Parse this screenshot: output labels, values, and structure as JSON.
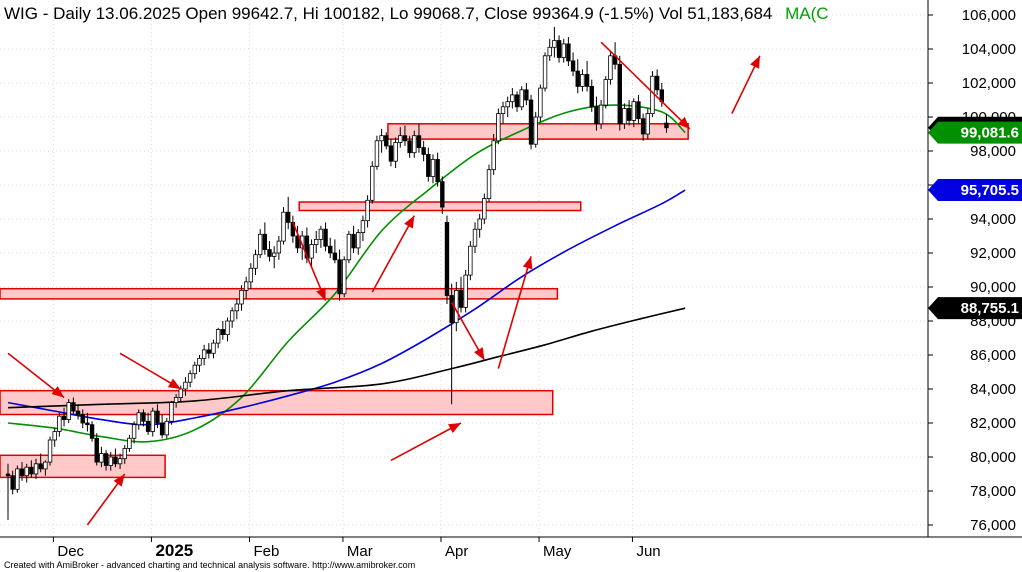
{
  "header": {
    "text": "WIG - Daily 13.06.2025 Open 99642.7, Hi 100182, Lo 99068.7, Close 99364.9 (-1.5%) Vol 51,183,684",
    "ma_text": "MA(C"
  },
  "footer": {
    "text": "Created with AmiBroker - advanced charting and technical analysis software. http://www.amibroker.com"
  },
  "colors": {
    "up_candle": "#ffffff",
    "down_candle": "#000000",
    "candle_outline": "#000000",
    "ma_short": "#009000",
    "ma_mid": "#0000e0",
    "ma_long": "#000000",
    "zone_fill": "#ffc0c0",
    "zone_stroke": "#e00000",
    "arrow": "#e00000",
    "badge_close": "#000000",
    "badge_short": "#009000",
    "badge_mid": "#0000e0",
    "badge_long": "#000000"
  },
  "chart_data": {
    "type": "candlestick",
    "title": "WIG - Daily",
    "y_axis": {
      "ticks": [
        76000,
        78000,
        80000,
        82000,
        84000,
        86000,
        88000,
        90000,
        92000,
        94000,
        96000,
        98000,
        100000,
        102000,
        104000,
        106000
      ],
      "tick_labels": [
        "76,000",
        "78,000",
        "80,000",
        "82,000",
        "84,000",
        "86,000",
        "88,000",
        "90,000",
        "92,000",
        "94,000",
        "96,000",
        "98,000",
        "100,000",
        "102,000",
        "104,000",
        "106,000"
      ],
      "ylim": [
        75000,
        106800
      ]
    },
    "x_axis": {
      "month_labels": [
        {
          "label": "Dec",
          "bar": 11,
          "bold": false
        },
        {
          "label": "2025",
          "bar": 32,
          "bold": true
        },
        {
          "label": "Feb",
          "bar": 53,
          "bold": false
        },
        {
          "label": "Mar",
          "bar": 73,
          "bold": false
        },
        {
          "label": "Apr",
          "bar": 94,
          "bold": false
        },
        {
          "label": "May",
          "bar": 115,
          "bold": false
        },
        {
          "label": "Jun",
          "bar": 135,
          "bold": false
        }
      ]
    },
    "bar_count": 146,
    "candles_ohlc": [
      [
        79000,
        79600,
        76300,
        78900
      ],
      [
        78900,
        79200,
        77800,
        78100
      ],
      [
        78100,
        79500,
        77900,
        79300
      ],
      [
        79300,
        79700,
        78600,
        78900
      ],
      [
        78900,
        79600,
        78500,
        79400
      ],
      [
        79400,
        79800,
        78800,
        79000
      ],
      [
        79000,
        79900,
        78700,
        79600
      ],
      [
        79600,
        80200,
        79100,
        79300
      ],
      [
        79300,
        79800,
        78900,
        79700
      ],
      [
        79700,
        81200,
        79500,
        81000
      ],
      [
        81000,
        81700,
        80600,
        81500
      ],
      [
        81500,
        82600,
        81200,
        82400
      ],
      [
        82400,
        82900,
        81800,
        82200
      ],
      [
        82200,
        83400,
        82000,
        83200
      ],
      [
        83200,
        83500,
        82500,
        82700
      ],
      [
        82700,
        83100,
        82200,
        82500
      ],
      [
        82500,
        82800,
        81700,
        82000
      ],
      [
        82000,
        82600,
        81500,
        81900
      ],
      [
        81900,
        82100,
        80900,
        81100
      ],
      [
        81100,
        81400,
        79500,
        79700
      ],
      [
        79700,
        80600,
        79400,
        80200
      ],
      [
        80200,
        80400,
        79200,
        79500
      ],
      [
        79500,
        80300,
        79200,
        80000
      ],
      [
        80000,
        80500,
        79400,
        79600
      ],
      [
        79600,
        80200,
        79300,
        79900
      ],
      [
        79900,
        80700,
        79600,
        80500
      ],
      [
        80500,
        81300,
        80300,
        81100
      ],
      [
        81100,
        82100,
        80800,
        81900
      ],
      [
        81900,
        82800,
        81600,
        82600
      ],
      [
        82600,
        82800,
        81800,
        82100
      ],
      [
        82100,
        82600,
        81300,
        81500
      ],
      [
        81500,
        82900,
        81200,
        82700
      ],
      [
        82700,
        83100,
        81700,
        82000
      ],
      [
        82000,
        82500,
        81100,
        81300
      ],
      [
        81300,
        82300,
        81100,
        82100
      ],
      [
        82100,
        83300,
        81900,
        83200
      ],
      [
        83200,
        83700,
        82900,
        83500
      ],
      [
        83500,
        84200,
        83200,
        84000
      ],
      [
        84000,
        84700,
        83600,
        84400
      ],
      [
        84400,
        85100,
        84100,
        84900
      ],
      [
        84900,
        85600,
        84600,
        85400
      ],
      [
        85400,
        86000,
        85000,
        85800
      ],
      [
        85800,
        86600,
        85400,
        86300
      ],
      [
        86300,
        86700,
        85800,
        86100
      ],
      [
        86100,
        86900,
        85800,
        86700
      ],
      [
        86700,
        87600,
        86400,
        87500
      ],
      [
        87500,
        88000,
        86900,
        87200
      ],
      [
        87200,
        88200,
        86800,
        88000
      ],
      [
        88000,
        88800,
        87600,
        88600
      ],
      [
        88600,
        89300,
        88100,
        89000
      ],
      [
        89000,
        90100,
        88600,
        89800
      ],
      [
        89800,
        90600,
        89300,
        90300
      ],
      [
        90300,
        91400,
        89900,
        91100
      ],
      [
        91100,
        92200,
        90700,
        91900
      ],
      [
        91900,
        93400,
        91700,
        93100
      ],
      [
        93100,
        93800,
        91900,
        92200
      ],
      [
        92200,
        92700,
        91500,
        91800
      ],
      [
        91800,
        92400,
        91100,
        92000
      ],
      [
        92000,
        93000,
        91600,
        92700
      ],
      [
        92700,
        94700,
        92500,
        94400
      ],
      [
        94400,
        95300,
        93400,
        93800
      ],
      [
        93800,
        94200,
        92600,
        93000
      ],
      [
        93000,
        93600,
        92000,
        92300
      ],
      [
        92300,
        93300,
        91600,
        93000
      ],
      [
        93000,
        93500,
        91400,
        91700
      ],
      [
        91700,
        92800,
        91200,
        92500
      ],
      [
        92500,
        93300,
        92000,
        92800
      ],
      [
        92800,
        93600,
        92300,
        93400
      ],
      [
        93400,
        93800,
        92100,
        92400
      ],
      [
        92400,
        92900,
        91700,
        92000
      ],
      [
        92000,
        92800,
        91400,
        91600
      ],
      [
        91600,
        92200,
        89200,
        89600
      ],
      [
        89600,
        91800,
        89400,
        91600
      ],
      [
        91600,
        93300,
        91400,
        93100
      ],
      [
        93100,
        93600,
        92000,
        92300
      ],
      [
        92300,
        93400,
        91900,
        93200
      ],
      [
        93200,
        94200,
        92700,
        93900
      ],
      [
        93900,
        95400,
        93500,
        95100
      ],
      [
        95100,
        97400,
        94900,
        97100
      ],
      [
        97100,
        98900,
        96900,
        98600
      ],
      [
        98600,
        99300,
        97900,
        98900
      ],
      [
        98900,
        99100,
        98100,
        98300
      ],
      [
        98300,
        98700,
        97100,
        97400
      ],
      [
        97400,
        98800,
        97000,
        98500
      ],
      [
        98500,
        99400,
        98200,
        98900
      ],
      [
        98900,
        99500,
        98300,
        98600
      ],
      [
        98600,
        98900,
        97600,
        97900
      ],
      [
        97900,
        99200,
        97600,
        98900
      ],
      [
        98900,
        99600,
        97900,
        98200
      ],
      [
        98200,
        98600,
        97400,
        97800
      ],
      [
        97800,
        98200,
        96200,
        96500
      ],
      [
        96500,
        97800,
        96100,
        97500
      ],
      [
        97500,
        97900,
        95900,
        96200
      ],
      [
        96200,
        96500,
        94300,
        94700
      ],
      [
        93800,
        94200,
        89000,
        89500
      ],
      [
        89500,
        90200,
        83100,
        87900
      ],
      [
        87900,
        90300,
        87400,
        89800
      ],
      [
        89800,
        90600,
        88500,
        88800
      ],
      [
        88800,
        91000,
        88500,
        90700
      ],
      [
        90700,
        92700,
        90400,
        92400
      ],
      [
        92400,
        93800,
        92000,
        93400
      ],
      [
        93400,
        94300,
        92900,
        94000
      ],
      [
        94000,
        95500,
        93700,
        95200
      ],
      [
        95200,
        97200,
        95000,
        96900
      ],
      [
        96900,
        99000,
        96600,
        98600
      ],
      [
        98600,
        100500,
        98400,
        100200
      ],
      [
        100200,
        100900,
        99600,
        100600
      ],
      [
        100600,
        101200,
        100000,
        100900
      ],
      [
        100900,
        101700,
        100500,
        101300
      ],
      [
        101300,
        101500,
        100300,
        100600
      ],
      [
        100600,
        101800,
        100400,
        101600
      ],
      [
        101600,
        102000,
        100700,
        101000
      ],
      [
        101000,
        101300,
        98100,
        98400
      ],
      [
        98400,
        100300,
        98200,
        100000
      ],
      [
        100000,
        101900,
        99700,
        101700
      ],
      [
        101700,
        103800,
        101500,
        103600
      ],
      [
        103600,
        104600,
        103300,
        104100
      ],
      [
        104100,
        105300,
        103500,
        104500
      ],
      [
        104500,
        104800,
        103200,
        103500
      ],
      [
        103500,
        104600,
        103200,
        104300
      ],
      [
        104300,
        104700,
        103000,
        103300
      ],
      [
        103300,
        103800,
        102400,
        102700
      ],
      [
        102700,
        103400,
        101400,
        101800
      ],
      [
        101800,
        102800,
        101500,
        102500
      ],
      [
        102500,
        103300,
        101500,
        101800
      ],
      [
        101800,
        102200,
        100300,
        100600
      ],
      [
        100600,
        101200,
        99200,
        99600
      ],
      [
        99600,
        101000,
        99300,
        100700
      ],
      [
        100700,
        102400,
        100500,
        102200
      ],
      [
        102200,
        103900,
        101900,
        103600
      ],
      [
        103600,
        104400,
        102800,
        103100
      ],
      [
        103100,
        103600,
        99200,
        99600
      ],
      [
        99600,
        100800,
        99300,
        100500
      ],
      [
        100500,
        101000,
        99500,
        99800
      ],
      [
        99800,
        101100,
        99400,
        100900
      ],
      [
        100900,
        101300,
        99600,
        99900
      ],
      [
        99900,
        100200,
        98600,
        99000
      ],
      [
        99000,
        100500,
        98700,
        100200
      ],
      [
        100200,
        102700,
        100000,
        102400
      ],
      [
        102400,
        102800,
        101300,
        101600
      ],
      [
        101600,
        102000,
        100600,
        100900
      ],
      [
        99642.7,
        100182,
        99068.7,
        99364.9
      ]
    ],
    "series": [
      {
        "name": "",
        "role": "ma_short",
        "points": [
          [
            0,
            82000
          ],
          [
            10,
            81700
          ],
          [
            20,
            81200
          ],
          [
            30,
            80900
          ],
          [
            40,
            81600
          ],
          [
            50,
            83500
          ],
          [
            60,
            86800
          ],
          [
            70,
            89600
          ],
          [
            80,
            93300
          ],
          [
            90,
            95700
          ],
          [
            100,
            97800
          ],
          [
            110,
            99200
          ],
          [
            120,
            100300
          ],
          [
            130,
            100700
          ],
          [
            140,
            100300
          ],
          [
            145,
            99081.6
          ]
        ]
      },
      {
        "name": "",
        "role": "ma_mid",
        "points": [
          [
            0,
            83200
          ],
          [
            10,
            82700
          ],
          [
            20,
            82200
          ],
          [
            30,
            81900
          ],
          [
            40,
            82300
          ],
          [
            50,
            82900
          ],
          [
            60,
            83600
          ],
          [
            70,
            84400
          ],
          [
            80,
            85500
          ],
          [
            90,
            87000
          ],
          [
            100,
            88700
          ],
          [
            110,
            90600
          ],
          [
            120,
            92200
          ],
          [
            130,
            93600
          ],
          [
            140,
            94900
          ],
          [
            145,
            95705.5
          ]
        ]
      },
      {
        "name": "",
        "role": "ma_long",
        "points": [
          [
            0,
            82900
          ],
          [
            20,
            83100
          ],
          [
            40,
            83300
          ],
          [
            60,
            83900
          ],
          [
            80,
            84300
          ],
          [
            95,
            85200
          ],
          [
            105,
            85900
          ],
          [
            115,
            86600
          ],
          [
            125,
            87400
          ],
          [
            135,
            88100
          ],
          [
            145,
            88755.1
          ]
        ]
      }
    ],
    "value_labels": [
      {
        "text": "99,364.9",
        "value": 99364.9,
        "role": "close"
      },
      {
        "text": "99,081.6",
        "value": 99081.6,
        "role": "ma_short"
      },
      {
        "text": "95,705.5",
        "value": 95705.5,
        "role": "ma_mid"
      },
      {
        "text": "88,755.1",
        "value": 88755.1,
        "role": "ma_long"
      }
    ],
    "zones": [
      {
        "bar_from": 82,
        "bar_to": 145,
        "low": 98700,
        "high": 99600
      },
      {
        "bar_from": 63,
        "bar_to": 122,
        "low": 94500,
        "high": 95000
      },
      {
        "bar_from": 0,
        "bar_to": 117,
        "low": 89300,
        "high": 89900
      },
      {
        "bar_from": 0,
        "bar_to": 116,
        "low": 82500,
        "high": 83900
      },
      {
        "bar_from": 0,
        "bar_to": 33,
        "low": 78800,
        "high": 80100
      }
    ],
    "arrows": [
      {
        "from": [
          0,
          86100
        ],
        "to": [
          12,
          83500
        ]
      },
      {
        "from": [
          24,
          86100
        ],
        "to": [
          37,
          84000
        ]
      },
      {
        "from": [
          17,
          76000
        ],
        "to": [
          25,
          79000
        ]
      },
      {
        "from": [
          61,
          93800
        ],
        "to": [
          68,
          89200
        ]
      },
      {
        "from": [
          78,
          89700
        ],
        "to": [
          87,
          94200
        ]
      },
      {
        "from": [
          82,
          79800
        ],
        "to": [
          97,
          82000
        ]
      },
      {
        "from": [
          95,
          89100
        ],
        "to": [
          102,
          85700
        ]
      },
      {
        "from": [
          105,
          85200
        ],
        "to": [
          112,
          91800
        ]
      },
      {
        "from": [
          127,
          104400
        ],
        "to": [
          146,
          99300
        ]
      },
      {
        "from": [
          155,
          100200
        ],
        "to": [
          161,
          103600
        ]
      }
    ]
  }
}
